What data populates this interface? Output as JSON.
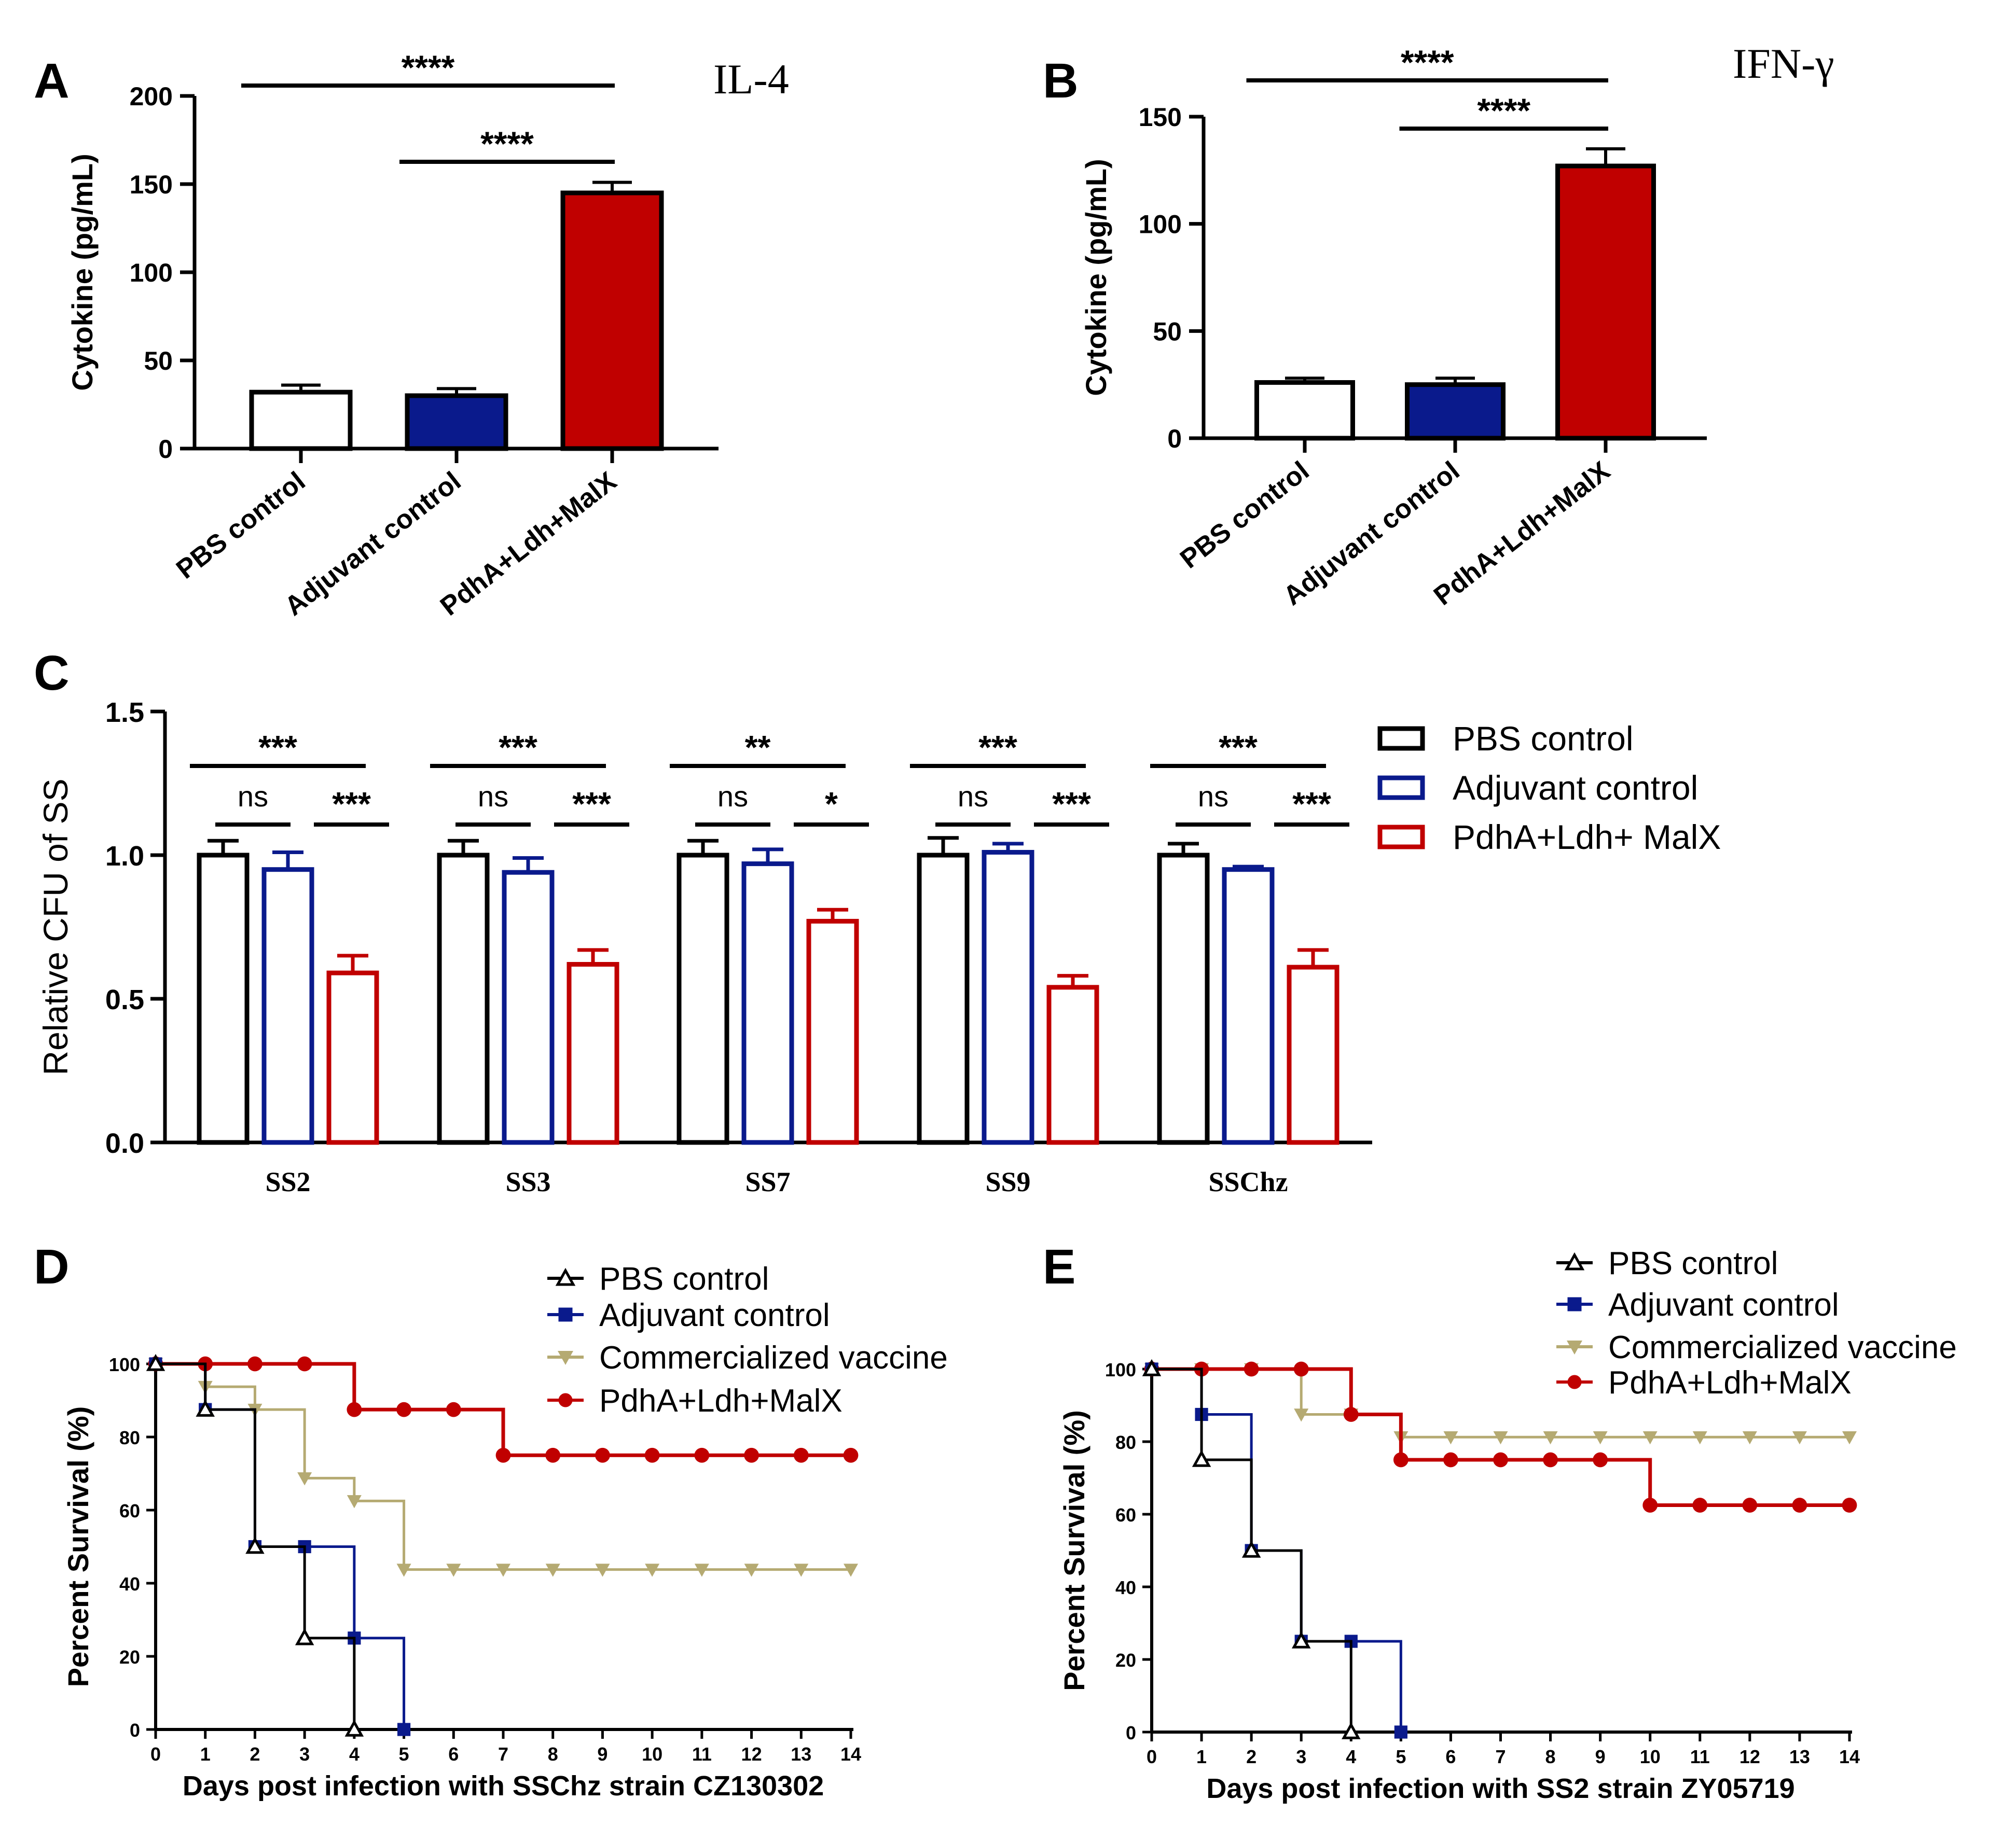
{
  "chart_data": [
    {
      "panel": "A",
      "type": "bar",
      "title": "IL-4",
      "ylabel": "Cytokine (pg/mL)",
      "ylim": [
        0,
        200
      ],
      "yticks": [
        0,
        50,
        100,
        150,
        200
      ],
      "ytick_labels": [
        "0",
        "50",
        "100",
        "150",
        "200"
      ],
      "categories": [
        "PBS control",
        "Adjuvant control",
        "PdhA+Ldh+MalX"
      ],
      "values": [
        32,
        30,
        145
      ],
      "errors": [
        4,
        4,
        6
      ],
      "colors": [
        "#ffffff",
        "#0a1a8c",
        "#c00000"
      ],
      "significance": [
        {
          "from": 0,
          "to": 2,
          "label": "****"
        },
        {
          "from": 1,
          "to": 2,
          "label": "****"
        }
      ]
    },
    {
      "panel": "B",
      "type": "bar",
      "title": "IFN-γ",
      "ylabel": "Cytokine (pg/mL)",
      "ylim": [
        0,
        150
      ],
      "yticks": [
        0,
        50,
        100,
        150
      ],
      "ytick_labels": [
        "0",
        "50",
        "100",
        "150"
      ],
      "categories": [
        "PBS control",
        "Adjuvant control",
        "PdhA+Ldh+MalX"
      ],
      "values": [
        26,
        25,
        127
      ],
      "errors": [
        2,
        3,
        8
      ],
      "colors": [
        "#ffffff",
        "#0a1a8c",
        "#c00000"
      ],
      "significance": [
        {
          "from": 0,
          "to": 2,
          "label": "****"
        },
        {
          "from": 1,
          "to": 2,
          "label": "****"
        }
      ]
    },
    {
      "panel": "C",
      "type": "bar",
      "ylabel": "Relative CFU of SS",
      "ylim": [
        0,
        1.5
      ],
      "yticks": [
        0,
        0.5,
        1.0,
        1.5
      ],
      "ytick_labels": [
        "0.0",
        "0.5",
        "1.0",
        "1.5"
      ],
      "categories": [
        "SS2",
        "SS3",
        "SS7",
        "SS9",
        "SSChz"
      ],
      "legend_position": "right",
      "series": [
        {
          "name": "PBS control",
          "color": "#000000",
          "values": [
            1.0,
            1.0,
            1.0,
            1.0,
            1.0
          ],
          "errors": [
            0.05,
            0.05,
            0.05,
            0.06,
            0.04
          ]
        },
        {
          "name": "Adjuvant control",
          "color": "#0a1a8c",
          "values": [
            0.95,
            0.94,
            0.97,
            1.01,
            0.95
          ],
          "errors": [
            0.06,
            0.05,
            0.05,
            0.03,
            0.01
          ]
        },
        {
          "name": "PdhA+Ldh+ MalX",
          "color": "#c00000",
          "values": [
            0.59,
            0.62,
            0.77,
            0.54,
            0.61
          ],
          "errors": [
            0.06,
            0.05,
            0.04,
            0.04,
            0.06
          ]
        }
      ],
      "significance": [
        {
          "pbs_vs_vaccine": "***",
          "pbs_vs_adjuvant": "ns",
          "adjuvant_vs_vaccine": "***"
        },
        {
          "pbs_vs_vaccine": "***",
          "pbs_vs_adjuvant": "ns",
          "adjuvant_vs_vaccine": "***"
        },
        {
          "pbs_vs_vaccine": "**",
          "pbs_vs_adjuvant": "ns",
          "adjuvant_vs_vaccine": "*"
        },
        {
          "pbs_vs_vaccine": "***",
          "pbs_vs_adjuvant": "ns",
          "adjuvant_vs_vaccine": "***"
        },
        {
          "pbs_vs_vaccine": "***",
          "pbs_vs_adjuvant": "ns",
          "adjuvant_vs_vaccine": "***"
        }
      ]
    },
    {
      "panel": "D",
      "type": "line",
      "subtype": "survival-step",
      "xlabel": "Days post infection with SSChz strain CZ130302",
      "ylabel": "Percent Survival (%)",
      "xlim": [
        0,
        14
      ],
      "ylim": [
        0,
        100
      ],
      "xticks": [
        0,
        1,
        2,
        3,
        4,
        5,
        6,
        7,
        8,
        9,
        10,
        11,
        12,
        13,
        14
      ],
      "xtick_labels": [
        "0",
        "1",
        "2",
        "3",
        "4",
        "5",
        "6",
        "7",
        "8",
        "9",
        "10",
        "11",
        "12",
        "13",
        "14"
      ],
      "yticks": [
        0,
        20,
        40,
        60,
        80,
        100
      ],
      "ytick_labels": [
        "0",
        "20",
        "40",
        "60",
        "80",
        "100"
      ],
      "legend_position": "top-right",
      "series": [
        {
          "name": "PBS control",
          "color": "#000000",
          "marker": "triangle",
          "x": [
            0,
            1,
            2,
            3,
            4
          ],
          "y": [
            100,
            87.5,
            50,
            25,
            0
          ]
        },
        {
          "name": "Adjuvant control",
          "color": "#0a1a8c",
          "marker": "square",
          "x": [
            0,
            1,
            2,
            3,
            4,
            5
          ],
          "y": [
            100,
            87.5,
            50,
            50,
            25,
            0
          ]
        },
        {
          "name": "Commercialized vaccine",
          "color": "#b5aa72",
          "marker": "down-triangle",
          "x": [
            0,
            1,
            2,
            3,
            4,
            5,
            6,
            7,
            8,
            9,
            10,
            11,
            12,
            13,
            14
          ],
          "y": [
            100,
            93.75,
            87.5,
            68.75,
            62.5,
            43.75,
            43.75,
            43.75,
            43.75,
            43.75,
            43.75,
            43.75,
            43.75,
            43.75,
            43.75
          ]
        },
        {
          "name": "PdhA+Ldh+MalX",
          "color": "#c00000",
          "marker": "circle",
          "x": [
            0,
            1,
            2,
            3,
            4,
            5,
            6,
            7,
            8,
            9,
            10,
            11,
            12,
            13,
            14
          ],
          "y": [
            100,
            100,
            100,
            100,
            87.5,
            87.5,
            87.5,
            75,
            75,
            75,
            75,
            75,
            75,
            75,
            75
          ]
        }
      ]
    },
    {
      "panel": "E",
      "type": "line",
      "subtype": "survival-step",
      "xlabel": "Days post infection with SS2 strain ZY05719",
      "ylabel": "Percent Survival (%)",
      "xlim": [
        0,
        14
      ],
      "ylim": [
        0,
        100
      ],
      "xticks": [
        0,
        1,
        2,
        3,
        4,
        5,
        6,
        7,
        8,
        9,
        10,
        11,
        12,
        13,
        14
      ],
      "xtick_labels": [
        "0",
        "1",
        "2",
        "3",
        "4",
        "5",
        "6",
        "7",
        "8",
        "9",
        "10",
        "11",
        "12",
        "13",
        "14"
      ],
      "yticks": [
        0,
        20,
        40,
        60,
        80,
        100
      ],
      "ytick_labels": [
        "0",
        "20",
        "40",
        "60",
        "80",
        "100"
      ],
      "legend_position": "top-right",
      "series": [
        {
          "name": "PBS control",
          "color": "#000000",
          "marker": "triangle",
          "x": [
            0,
            1,
            2,
            3,
            4
          ],
          "y": [
            100,
            75,
            50,
            25,
            0
          ]
        },
        {
          "name": "Adjuvant control",
          "color": "#0a1a8c",
          "marker": "square",
          "x": [
            0,
            1,
            2,
            3,
            4,
            5
          ],
          "y": [
            100,
            87.5,
            50,
            25,
            25,
            0
          ]
        },
        {
          "name": "Commercialized vaccine",
          "color": "#b5aa72",
          "marker": "down-triangle",
          "x": [
            0,
            1,
            2,
            3,
            4,
            5,
            6,
            7,
            8,
            9,
            10,
            11,
            12,
            13,
            14
          ],
          "y": [
            100,
            100,
            100,
            87.5,
            87.5,
            81.25,
            81.25,
            81.25,
            81.25,
            81.25,
            81.25,
            81.25,
            81.25,
            81.25,
            81.25
          ]
        },
        {
          "name": "PdhA+Ldh+MalX",
          "color": "#c00000",
          "marker": "circle",
          "x": [
            0,
            1,
            2,
            3,
            4,
            5,
            6,
            7,
            8,
            9,
            10,
            11,
            12,
            13,
            14
          ],
          "y": [
            100,
            100,
            100,
            100,
            87.5,
            75,
            75,
            75,
            75,
            75,
            62.5,
            62.5,
            62.5,
            62.5,
            62.5
          ]
        }
      ]
    }
  ]
}
